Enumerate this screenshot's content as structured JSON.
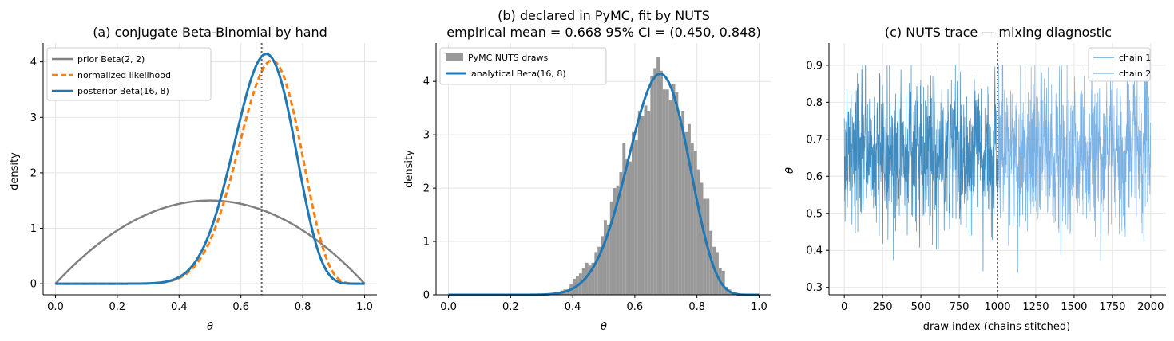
{
  "chart_data": [
    {
      "type": "line",
      "title": "(a) conjugate Beta-Binomial by hand",
      "xlabel": "θ",
      "ylabel": "density",
      "xlim": [
        -0.04,
        1.04
      ],
      "ylim": [
        -0.2,
        4.34
      ],
      "xticks": [
        0.0,
        0.2,
        0.4,
        0.6,
        0.8,
        1.0
      ],
      "xtick_labels": [
        "0.0",
        "0.2",
        "0.4",
        "0.6",
        "0.8",
        "1.0"
      ],
      "yticks": [
        0,
        1,
        2,
        3,
        4
      ],
      "ytick_labels": [
        "0",
        "1",
        "2",
        "3",
        "4"
      ],
      "grid": true,
      "legend_position": "top-left",
      "vline": {
        "x": 0.667,
        "style": "dotted",
        "color": "#666666"
      },
      "series": [
        {
          "name": "prior  Beta(2, 2)",
          "dist": "beta",
          "a": 2,
          "b": 2,
          "color": "#808080",
          "style": "solid"
        },
        {
          "name": "normalized likelihood",
          "dist": "beta",
          "a": 15,
          "b": 7,
          "color": "#ff7f0e",
          "style": "dashed"
        },
        {
          "name": "posterior  Beta(16, 8)",
          "dist": "beta",
          "a": 16,
          "b": 8,
          "color": "#1f77b4",
          "style": "solid"
        }
      ]
    },
    {
      "type": "bar",
      "title": "(b) declared in PyMC, fit by NUTS",
      "subtitle": "empirical mean = 0.668   95% CI = (0.450, 0.848)",
      "xlabel": "θ",
      "ylabel": "density",
      "xlim": [
        -0.04,
        1.04
      ],
      "ylim": [
        0,
        4.72
      ],
      "xticks": [
        0.0,
        0.2,
        0.4,
        0.6,
        0.8,
        1.0
      ],
      "xtick_labels": [
        "0.0",
        "0.2",
        "0.4",
        "0.6",
        "0.8",
        "1.0"
      ],
      "yticks": [
        0,
        1,
        2,
        3,
        4
      ],
      "ytick_labels": [
        "0",
        "1",
        "2",
        "3",
        "4"
      ],
      "grid": true,
      "legend_position": "top-left",
      "histogram": {
        "name": "PyMC NUTS draws",
        "color": "#999999",
        "bin_width": 0.01,
        "bin_starts": [
          0.35,
          0.36,
          0.37,
          0.38,
          0.39,
          0.4,
          0.41,
          0.42,
          0.43,
          0.44,
          0.45,
          0.46,
          0.47,
          0.48,
          0.49,
          0.5,
          0.51,
          0.52,
          0.53,
          0.54,
          0.55,
          0.56,
          0.57,
          0.58,
          0.59,
          0.6,
          0.61,
          0.62,
          0.63,
          0.64,
          0.65,
          0.66,
          0.67,
          0.68,
          0.69,
          0.7,
          0.71,
          0.72,
          0.73,
          0.74,
          0.75,
          0.76,
          0.77,
          0.78,
          0.79,
          0.8,
          0.81,
          0.82,
          0.83,
          0.84,
          0.85,
          0.86,
          0.87,
          0.88,
          0.89,
          0.9,
          0.91,
          0.92
        ],
        "density": [
          0.05,
          0.08,
          0.1,
          0.1,
          0.2,
          0.3,
          0.35,
          0.4,
          0.5,
          0.6,
          0.55,
          0.6,
          0.8,
          0.9,
          1.1,
          1.4,
          1.3,
          1.75,
          2.0,
          2.05,
          2.3,
          2.85,
          2.55,
          2.5,
          3.05,
          2.9,
          3.45,
          3.35,
          3.55,
          3.45,
          4.1,
          4.25,
          4.45,
          4.2,
          3.85,
          3.85,
          3.65,
          3.95,
          3.8,
          3.35,
          3.45,
          3.05,
          3.2,
          2.85,
          2.7,
          2.35,
          2.1,
          1.8,
          1.8,
          1.2,
          0.9,
          0.8,
          0.5,
          0.45,
          0.15,
          0.1,
          0.05,
          0.05
        ]
      },
      "series": [
        {
          "name": "analytical  Beta(16, 8)",
          "dist": "beta",
          "a": 16,
          "b": 8,
          "color": "#1f77b4",
          "style": "solid"
        }
      ]
    },
    {
      "type": "line",
      "title": "(c) NUTS trace — mixing diagnostic",
      "xlabel": "draw index (chains stitched)",
      "ylabel": "θ",
      "xlim": [
        -100,
        2100
      ],
      "ylim": [
        0.28,
        0.96
      ],
      "xticks": [
        0,
        250,
        500,
        750,
        1000,
        1250,
        1500,
        1750,
        2000
      ],
      "xtick_labels": [
        "0",
        "250",
        "500",
        "750",
        "1000",
        "1250",
        "1500",
        "1750",
        "2000"
      ],
      "yticks": [
        0.3,
        0.4,
        0.5,
        0.6,
        0.7,
        0.8,
        0.9
      ],
      "ytick_labels": [
        "0.3",
        "0.4",
        "0.5",
        "0.6",
        "0.7",
        "0.8",
        "0.9"
      ],
      "grid": true,
      "legend_position": "top-right",
      "vline": {
        "x": 1000,
        "style": "dotted",
        "color": "#666666"
      },
      "series": [
        {
          "name": "chain 1",
          "x_range": [
            0,
            999
          ],
          "mean": 0.668,
          "sd": 0.102,
          "color": "#1f77b4",
          "opacity": 0.85
        },
        {
          "name": "chain 2",
          "x_range": [
            1000,
            1999
          ],
          "mean": 0.668,
          "sd": 0.102,
          "color": "#5a9fe0",
          "opacity": 0.8
        }
      ]
    }
  ]
}
